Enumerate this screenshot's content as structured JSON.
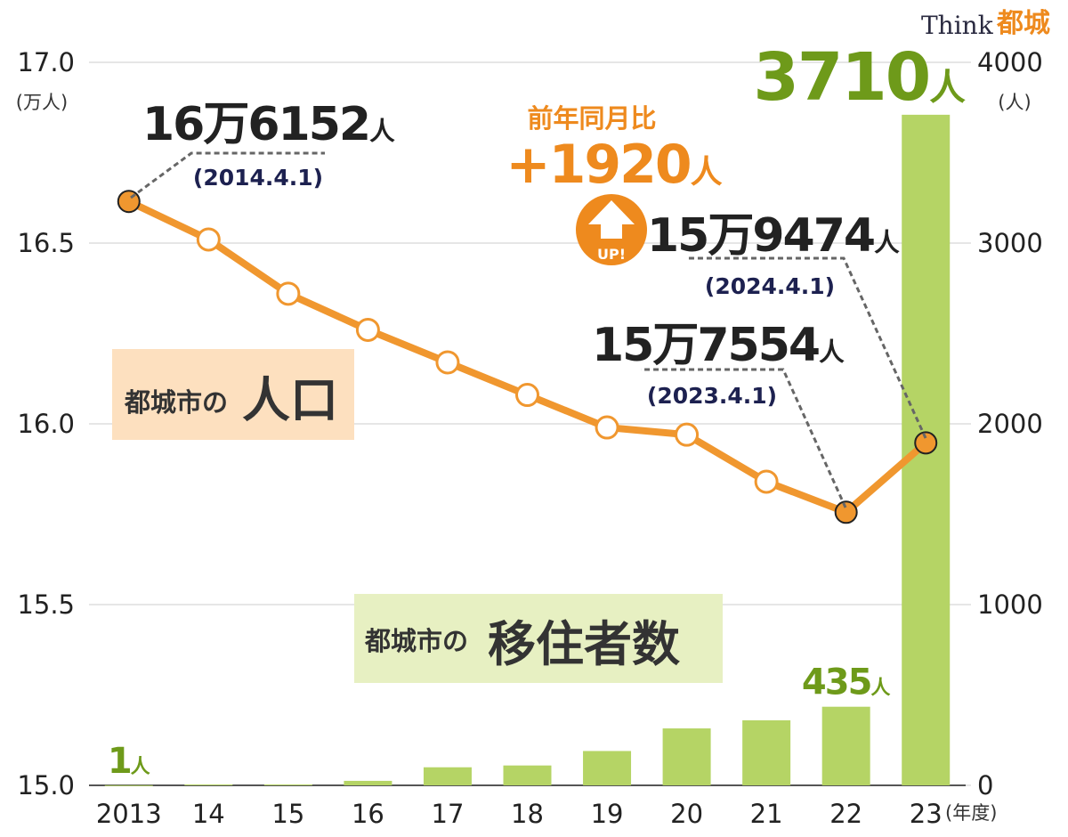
{
  "chart_data": {
    "type": "combo",
    "logo": {
      "think": "Think",
      "city": "都城"
    },
    "y_unit": "(万人)",
    "y2_unit": "(人)",
    "x_unit": "(年度)",
    "categories": [
      "2013",
      "14",
      "15",
      "16",
      "17",
      "18",
      "19",
      "20",
      "21",
      "22",
      "23"
    ],
    "ylim": [
      15.0,
      17.0
    ],
    "yticks": [
      {
        "value": 15,
        "label": "15.0"
      },
      15.5,
      {
        "value": 16,
        "label": "16.0"
      },
      16.5,
      {
        "value": 17,
        "label": "17.0"
      }
    ],
    "y2lim": [
      0,
      4000
    ],
    "y2ticks": [
      0,
      1000,
      2000,
      3000,
      4000
    ],
    "grid": true,
    "legend_prefix": "都城市の",
    "series": [
      {
        "name": "人口",
        "type": "line",
        "axis": "y",
        "color": "#f0972f",
        "values": [
          16.6152,
          16.51,
          16.36,
          16.26,
          16.17,
          16.08,
          15.99,
          15.97,
          15.84,
          15.7554,
          15.9474
        ],
        "value_labels": [
          "16万6152人",
          null,
          null,
          null,
          null,
          null,
          null,
          null,
          null,
          "15万7554人",
          "15万9474人"
        ]
      },
      {
        "name": "移住者数",
        "type": "bar",
        "axis": "y2",
        "color": "#b5d465",
        "label_color": "#6e9a1a",
        "values": [
          1,
          5,
          5,
          25,
          100,
          110,
          190,
          315,
          360,
          435,
          3710
        ],
        "value_labels": [
          "1人",
          null,
          null,
          null,
          null,
          null,
          null,
          null,
          null,
          "435人",
          "3710人"
        ]
      }
    ],
    "annotations": {
      "date_2014": "(2014.4.1)",
      "date_2023": "(2023.4.1)",
      "date_2024": "(2024.4.1)",
      "yoy_label": "前年同月比",
      "yoy_value": "+1920人",
      "up": "UP!"
    }
  }
}
